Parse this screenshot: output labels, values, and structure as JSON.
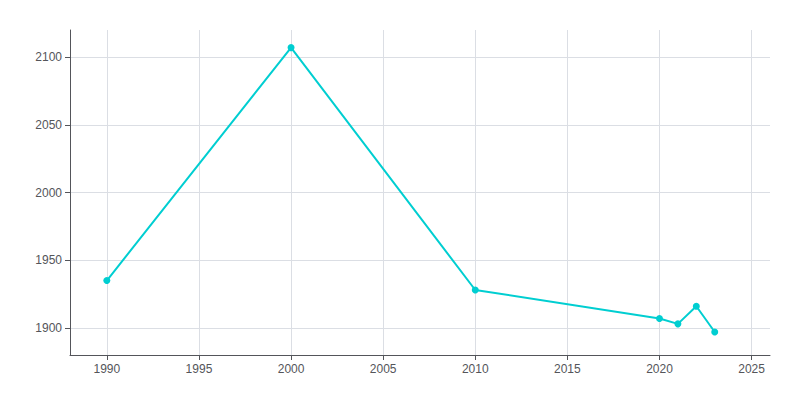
{
  "chart_data": {
    "type": "line",
    "x": [
      1990,
      2000,
      2010,
      2020,
      2021,
      2022,
      2023
    ],
    "values": [
      1935,
      2107,
      1928,
      1907,
      1903,
      1916,
      1897
    ],
    "color": "#00CED1",
    "marker": "circle",
    "xlim": [
      1988,
      2026
    ],
    "ylim": [
      1880,
      2120
    ],
    "xticks": [
      1990,
      1995,
      2000,
      2005,
      2010,
      2015,
      2020,
      2025
    ],
    "yticks": [
      1900,
      1950,
      2000,
      2050,
      2100
    ],
    "grid": true
  }
}
